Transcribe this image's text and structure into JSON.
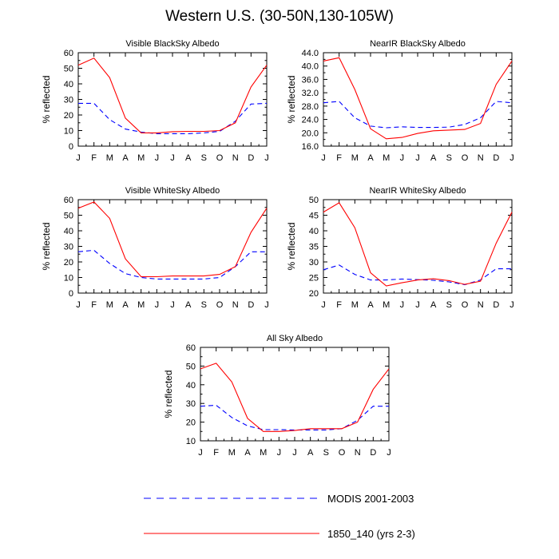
{
  "title": "Western U.S. (30-50N,130-105W)",
  "months": [
    "J",
    "F",
    "M",
    "A",
    "M",
    "J",
    "J",
    "A",
    "S",
    "O",
    "N",
    "D",
    "J"
  ],
  "ylabel": "% reflected",
  "legend": {
    "modis": "MODIS 2001-2003",
    "model": "1850_140 (yrs 2-3)"
  },
  "colors": {
    "modis": "#0000ff",
    "model": "#ff0000"
  },
  "chart_data": [
    {
      "type": "line",
      "title": "Visible BlackSky Albedo",
      "categories": [
        "J",
        "F",
        "M",
        "A",
        "M",
        "J",
        "J",
        "A",
        "S",
        "O",
        "N",
        "D",
        "J"
      ],
      "ylabel": "% reflected",
      "ylim": [
        0,
        60
      ],
      "yticks": [
        "0",
        "10",
        "20",
        "30",
        "40",
        "50",
        "60"
      ],
      "series": [
        {
          "name": "MODIS 2001-2003",
          "values": [
            27.5,
            27.5,
            17,
            11,
            9,
            8,
            8,
            8,
            8.5,
            9.5,
            16,
            27,
            27.5
          ]
        },
        {
          "name": "1850_140 (yrs 2-3)",
          "values": [
            52,
            56.5,
            44,
            18,
            8.5,
            8.5,
            9.3,
            9.5,
            9.5,
            10,
            15,
            38,
            52
          ]
        }
      ]
    },
    {
      "type": "line",
      "title": "NearIR BlackSky Albedo",
      "categories": [
        "J",
        "F",
        "M",
        "A",
        "M",
        "J",
        "J",
        "A",
        "S",
        "O",
        "N",
        "D",
        "J"
      ],
      "ylabel": "% reflected",
      "ylim": [
        16,
        44
      ],
      "yticks": [
        "16.0",
        "20.0",
        "24.0",
        "28.0",
        "32.0",
        "36.0",
        "40.0",
        "44.0"
      ],
      "series": [
        {
          "name": "MODIS 2001-2003",
          "values": [
            29,
            29.4,
            24.5,
            22,
            21.5,
            21.8,
            21.6,
            21.6,
            21.7,
            22.5,
            24.5,
            29.4,
            29
          ]
        },
        {
          "name": "1850_140 (yrs 2-3)",
          "values": [
            41.5,
            42.5,
            33,
            21.2,
            18.2,
            18.6,
            19.8,
            20.6,
            20.8,
            21,
            22.8,
            34.5,
            41.5
          ]
        }
      ]
    },
    {
      "type": "line",
      "title": "Visible WhiteSky Albedo",
      "categories": [
        "J",
        "F",
        "M",
        "A",
        "M",
        "J",
        "J",
        "A",
        "S",
        "O",
        "N",
        "D",
        "J"
      ],
      "ylabel": "% reflected",
      "ylim": [
        0,
        60
      ],
      "yticks": [
        "0",
        "10",
        "20",
        "30",
        "40",
        "50",
        "60"
      ],
      "series": [
        {
          "name": "MODIS 2001-2003",
          "values": [
            26.5,
            27.5,
            19,
            12.5,
            10,
            9,
            9,
            9,
            9,
            10,
            17,
            26.5,
            26.5
          ]
        },
        {
          "name": "1850_140 (yrs 2-3)",
          "values": [
            54.5,
            58.5,
            48,
            22,
            10.5,
            10.5,
            11,
            11,
            11,
            12,
            17,
            39,
            54.5
          ]
        }
      ]
    },
    {
      "type": "line",
      "title": "NearIR WhiteSky Albedo",
      "categories": [
        "J",
        "F",
        "M",
        "A",
        "M",
        "J",
        "J",
        "A",
        "S",
        "O",
        "N",
        "D",
        "J"
      ],
      "ylabel": "% reflected",
      "ylim": [
        20,
        50
      ],
      "yticks": [
        "20",
        "25",
        "30",
        "35",
        "40",
        "45",
        "50"
      ],
      "series": [
        {
          "name": "MODIS 2001-2003",
          "values": [
            27.5,
            29,
            26,
            24.2,
            24.2,
            24.5,
            24.3,
            24.1,
            23.6,
            22.7,
            24.2,
            27.8,
            27.8
          ]
        },
        {
          "name": "1850_140 (yrs 2-3)",
          "values": [
            46,
            49,
            41,
            26.5,
            22.3,
            23.3,
            24.2,
            24.6,
            24,
            22.8,
            23.8,
            36,
            46
          ]
        }
      ]
    },
    {
      "type": "line",
      "title": "All Sky Albedo",
      "categories": [
        "J",
        "F",
        "M",
        "A",
        "M",
        "J",
        "J",
        "A",
        "S",
        "O",
        "N",
        "D",
        "J"
      ],
      "ylabel": "% reflected",
      "ylim": [
        10,
        60
      ],
      "yticks": [
        "10",
        "20",
        "30",
        "40",
        "50",
        "60"
      ],
      "series": [
        {
          "name": "MODIS 2001-2003",
          "values": [
            28.5,
            29,
            22.5,
            18,
            16,
            16,
            15.8,
            15.8,
            15.8,
            16.5,
            21,
            28.5,
            28.5
          ]
        },
        {
          "name": "1850_140 (yrs 2-3)",
          "values": [
            48.5,
            51.5,
            41.5,
            22,
            15,
            15,
            15.5,
            16.5,
            16.5,
            16.5,
            20,
            37.5,
            48.5
          ]
        }
      ]
    }
  ]
}
